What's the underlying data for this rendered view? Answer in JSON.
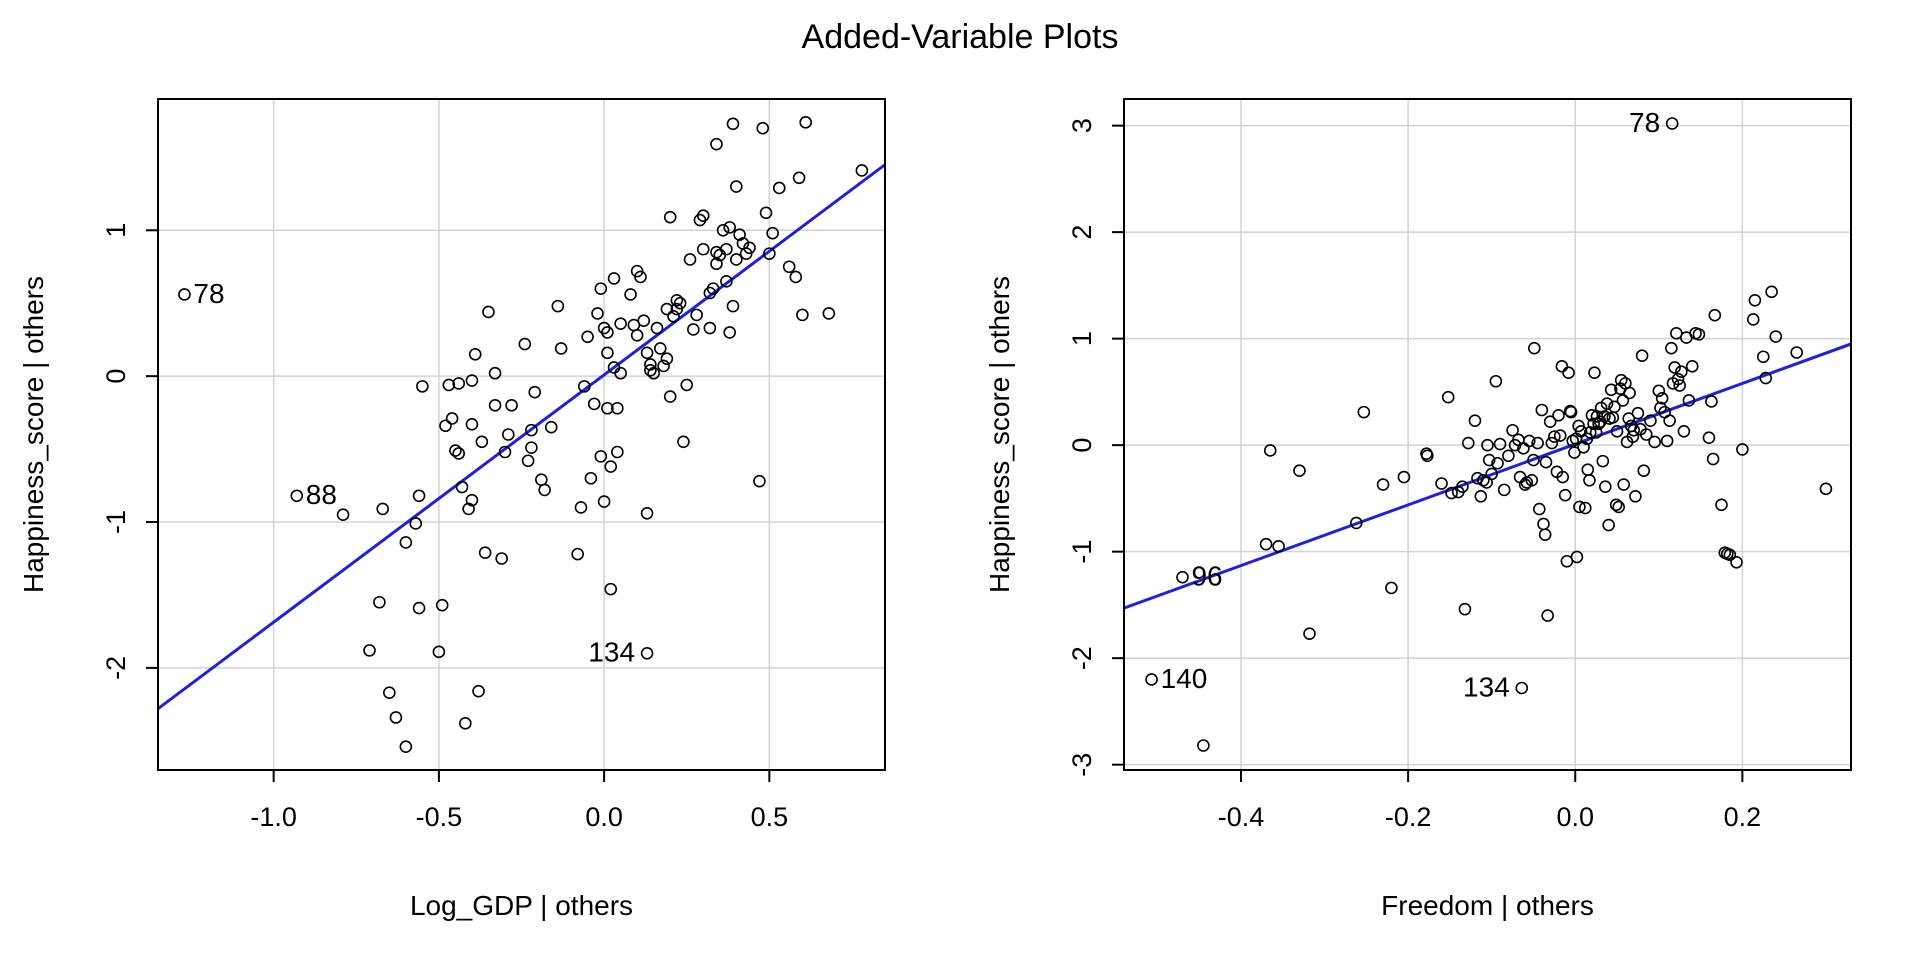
{
  "title": "Added-Variable Plots",
  "colors": {
    "fit_line": "#1f1fe0",
    "grid": "#d3d3d3",
    "points": "#000000"
  },
  "chart_data": [
    {
      "type": "scatter",
      "xlabel": "Log_GDP | others",
      "ylabel": "Happiness_score  | others",
      "xlim": [
        -1.35,
        0.85
      ],
      "ylim": [
        -2.7,
        1.9
      ],
      "xticks": [
        -1.0,
        -0.5,
        0.0,
        0.5
      ],
      "yticks": [
        -2,
        -1,
        0,
        1
      ],
      "xtick_labels": [
        "-1.0",
        "-0.5",
        "0.0",
        "0.5"
      ],
      "ytick_labels": [
        "-2",
        "-1",
        "0",
        "1"
      ],
      "grid": true,
      "fit_line": [
        [
          -1.35,
          -2.28
        ],
        [
          0.85,
          1.45
        ]
      ],
      "labeled_points": [
        {
          "label": "78",
          "x": -1.27,
          "y": 0.56
        },
        {
          "label": "88",
          "x": -0.93,
          "y": -0.82
        },
        {
          "label": "134",
          "x": 0.13,
          "y": -1.9
        }
      ],
      "points": [
        [
          -0.79,
          -0.95
        ],
        [
          -0.67,
          -0.91
        ],
        [
          -0.68,
          -1.55
        ],
        [
          -0.71,
          -1.88
        ],
        [
          -0.65,
          -2.17
        ],
        [
          -0.63,
          -2.34
        ],
        [
          -0.6,
          -2.54
        ],
        [
          -0.6,
          -1.14
        ],
        [
          -0.57,
          -1.01
        ],
        [
          -0.56,
          -1.59
        ],
        [
          -0.56,
          -0.82
        ],
        [
          -0.55,
          -0.07
        ],
        [
          -0.49,
          -1.57
        ],
        [
          -0.5,
          -1.89
        ],
        [
          -0.48,
          -0.34
        ],
        [
          -0.47,
          -0.06
        ],
        [
          -0.46,
          -0.29
        ],
        [
          -0.45,
          -0.51
        ],
        [
          -0.44,
          -0.53
        ],
        [
          -0.44,
          -0.05
        ],
        [
          -0.43,
          -0.76
        ],
        [
          -0.42,
          -2.38
        ],
        [
          -0.41,
          -0.91
        ],
        [
          -0.4,
          -0.33
        ],
        [
          -0.4,
          -0.85
        ],
        [
          -0.4,
          -0.03
        ],
        [
          -0.39,
          0.15
        ],
        [
          -0.38,
          -2.16
        ],
        [
          -0.37,
          -0.45
        ],
        [
          -0.36,
          -1.21
        ],
        [
          -0.35,
          0.44
        ],
        [
          -0.33,
          -0.2
        ],
        [
          -0.33,
          0.02
        ],
        [
          -0.31,
          -1.25
        ],
        [
          -0.3,
          -0.52
        ],
        [
          -0.29,
          -0.4
        ],
        [
          -0.28,
          -0.2
        ],
        [
          -0.24,
          0.22
        ],
        [
          -0.23,
          -0.58
        ],
        [
          -0.22,
          -0.49
        ],
        [
          -0.22,
          -0.37
        ],
        [
          -0.21,
          -0.11
        ],
        [
          -0.19,
          -0.71
        ],
        [
          -0.18,
          -0.78
        ],
        [
          -0.16,
          -0.35
        ],
        [
          -0.14,
          0.48
        ],
        [
          -0.13,
          0.19
        ],
        [
          -0.08,
          -1.22
        ],
        [
          -0.07,
          -0.9
        ],
        [
          -0.06,
          -0.07
        ],
        [
          -0.05,
          0.27
        ],
        [
          -0.04,
          -0.7
        ],
        [
          -0.03,
          -0.19
        ],
        [
          -0.02,
          0.43
        ],
        [
          -0.01,
          -0.55
        ],
        [
          -0.01,
          0.6
        ],
        [
          0.0,
          0.33
        ],
        [
          0.0,
          -0.86
        ],
        [
          0.01,
          0.3
        ],
        [
          0.01,
          0.16
        ],
        [
          0.01,
          -0.22
        ],
        [
          0.02,
          -0.62
        ],
        [
          0.02,
          -1.46
        ],
        [
          0.03,
          0.06
        ],
        [
          0.03,
          0.67
        ],
        [
          0.04,
          -0.22
        ],
        [
          0.04,
          -0.52
        ],
        [
          0.05,
          0.36
        ],
        [
          0.05,
          0.02
        ],
        [
          0.08,
          0.56
        ],
        [
          0.09,
          0.35
        ],
        [
          0.1,
          0.28
        ],
        [
          0.1,
          0.72
        ],
        [
          0.11,
          0.68
        ],
        [
          0.12,
          0.38
        ],
        [
          0.13,
          0.16
        ],
        [
          0.13,
          -0.94
        ],
        [
          0.14,
          0.04
        ],
        [
          0.14,
          0.08
        ],
        [
          0.15,
          0.02
        ],
        [
          0.16,
          0.33
        ],
        [
          0.17,
          0.19
        ],
        [
          0.18,
          0.07
        ],
        [
          0.19,
          0.12
        ],
        [
          0.19,
          0.46
        ],
        [
          0.2,
          -0.14
        ],
        [
          0.2,
          1.09
        ],
        [
          0.21,
          0.41
        ],
        [
          0.22,
          0.52
        ],
        [
          0.22,
          0.46
        ],
        [
          0.23,
          0.5
        ],
        [
          0.24,
          -0.45
        ],
        [
          0.25,
          -0.06
        ],
        [
          0.26,
          0.8
        ],
        [
          0.27,
          0.32
        ],
        [
          0.28,
          0.42
        ],
        [
          0.29,
          1.07
        ],
        [
          0.3,
          0.87
        ],
        [
          0.3,
          1.1
        ],
        [
          0.32,
          0.57
        ],
        [
          0.32,
          0.33
        ],
        [
          0.33,
          0.6
        ],
        [
          0.34,
          0.85
        ],
        [
          0.34,
          0.77
        ],
        [
          0.35,
          0.83
        ],
        [
          0.34,
          1.59
        ],
        [
          0.36,
          1.0
        ],
        [
          0.37,
          0.65
        ],
        [
          0.37,
          0.87
        ],
        [
          0.38,
          1.02
        ],
        [
          0.38,
          0.3
        ],
        [
          0.39,
          0.48
        ],
        [
          0.39,
          1.73
        ],
        [
          0.4,
          1.3
        ],
        [
          0.4,
          0.8
        ],
        [
          0.41,
          0.97
        ],
        [
          0.42,
          0.91
        ],
        [
          0.43,
          0.84
        ],
        [
          0.44,
          0.88
        ],
        [
          0.47,
          -0.72
        ],
        [
          0.48,
          1.7
        ],
        [
          0.49,
          1.12
        ],
        [
          0.5,
          0.84
        ],
        [
          0.51,
          0.98
        ],
        [
          0.53,
          1.29
        ],
        [
          0.56,
          0.75
        ],
        [
          0.58,
          0.68
        ],
        [
          0.59,
          1.36
        ],
        [
          0.6,
          0.42
        ],
        [
          0.61,
          1.74
        ],
        [
          0.68,
          0.43
        ],
        [
          0.78,
          1.41
        ]
      ]
    },
    {
      "type": "scatter",
      "xlabel": "Freedom | others",
      "ylabel": "Happiness_score  | others",
      "xlim": [
        -0.54,
        0.33
      ],
      "ylim": [
        -3.05,
        3.25
      ],
      "xticks": [
        -0.4,
        -0.2,
        0.0,
        0.2
      ],
      "yticks": [
        -3,
        -2,
        -1,
        0,
        1,
        2,
        3
      ],
      "xtick_labels": [
        "-0.4",
        "-0.2",
        "0.0",
        "0.2"
      ],
      "ytick_labels": [
        "-3",
        "-2",
        "-1",
        "0",
        "1",
        "2",
        "3"
      ],
      "grid": true,
      "fit_line": [
        [
          -0.54,
          -1.53
        ],
        [
          0.33,
          0.95
        ]
      ],
      "labeled_points": [
        {
          "label": "78",
          "x": 0.116,
          "y": 3.02
        },
        {
          "label": "96",
          "x": -0.47,
          "y": -1.24
        },
        {
          "label": "140",
          "x": -0.507,
          "y": -2.2
        },
        {
          "label": "134",
          "x": -0.064,
          "y": -2.28
        }
      ],
      "points": [
        [
          -0.445,
          -2.82
        ],
        [
          -0.37,
          -0.93
        ],
        [
          -0.365,
          -0.05
        ],
        [
          -0.355,
          -0.95
        ],
        [
          -0.33,
          -0.24
        ],
        [
          -0.318,
          -1.77
        ],
        [
          -0.262,
          -0.73
        ],
        [
          -0.253,
          0.31
        ],
        [
          -0.23,
          -0.37
        ],
        [
          -0.22,
          -1.34
        ],
        [
          -0.205,
          -0.3
        ],
        [
          -0.178,
          -0.08
        ],
        [
          -0.177,
          -0.1
        ],
        [
          -0.16,
          -0.36
        ],
        [
          -0.152,
          0.45
        ],
        [
          -0.148,
          -0.45
        ],
        [
          -0.14,
          -0.44
        ],
        [
          -0.135,
          -0.39
        ],
        [
          -0.132,
          -1.54
        ],
        [
          -0.128,
          0.02
        ],
        [
          -0.12,
          0.23
        ],
        [
          -0.117,
          -0.31
        ],
        [
          -0.113,
          -0.48
        ],
        [
          -0.11,
          -0.33
        ],
        [
          -0.106,
          -0.35
        ],
        [
          -0.105,
          0.0
        ],
        [
          -0.103,
          -0.14
        ],
        [
          -0.1,
          -0.27
        ],
        [
          -0.095,
          0.6
        ],
        [
          -0.093,
          -0.17
        ],
        [
          -0.09,
          0.01
        ],
        [
          -0.085,
          -0.42
        ],
        [
          -0.08,
          -0.1
        ],
        [
          -0.075,
          0.14
        ],
        [
          -0.072,
          0.0
        ],
        [
          -0.068,
          0.05
        ],
        [
          -0.066,
          -0.3
        ],
        [
          -0.062,
          -0.03
        ],
        [
          -0.06,
          -0.37
        ],
        [
          -0.058,
          -0.35
        ],
        [
          -0.055,
          0.04
        ],
        [
          -0.052,
          -0.33
        ],
        [
          -0.05,
          -0.14
        ],
        [
          -0.049,
          0.91
        ],
        [
          -0.045,
          0.02
        ],
        [
          -0.043,
          -0.6
        ],
        [
          -0.04,
          0.33
        ],
        [
          -0.038,
          -0.74
        ],
        [
          -0.036,
          -0.84
        ],
        [
          -0.035,
          -0.16
        ],
        [
          -0.033,
          -1.6
        ],
        [
          -0.03,
          0.22
        ],
        [
          -0.028,
          0.02
        ],
        [
          -0.025,
          0.08
        ],
        [
          -0.022,
          -0.25
        ],
        [
          -0.02,
          0.28
        ],
        [
          -0.018,
          0.09
        ],
        [
          -0.016,
          0.74
        ],
        [
          -0.015,
          -0.3
        ],
        [
          -0.012,
          -0.47
        ],
        [
          -0.01,
          -1.09
        ],
        [
          -0.008,
          0.68
        ],
        [
          -0.006,
          0.32
        ],
        [
          -0.005,
          0.31
        ],
        [
          -0.003,
          0.04
        ],
        [
          -0.001,
          -0.07
        ],
        [
          0.001,
          0.06
        ],
        [
          0.002,
          -1.05
        ],
        [
          0.004,
          0.18
        ],
        [
          0.005,
          -0.58
        ],
        [
          0.007,
          0.13
        ],
        [
          0.01,
          -0.02
        ],
        [
          0.012,
          -0.59
        ],
        [
          0.014,
          0.06
        ],
        [
          0.015,
          -0.23
        ],
        [
          0.017,
          -0.33
        ],
        [
          0.018,
          0.12
        ],
        [
          0.02,
          0.28
        ],
        [
          0.022,
          0.2
        ],
        [
          0.023,
          0.68
        ],
        [
          0.025,
          0.12
        ],
        [
          0.026,
          0.27
        ],
        [
          0.028,
          0.2
        ],
        [
          0.03,
          0.22
        ],
        [
          0.031,
          0.35
        ],
        [
          0.033,
          -0.15
        ],
        [
          0.035,
          0.27
        ],
        [
          0.036,
          -0.39
        ],
        [
          0.038,
          0.39
        ],
        [
          0.04,
          -0.75
        ],
        [
          0.041,
          0.25
        ],
        [
          0.043,
          0.52
        ],
        [
          0.045,
          0.26
        ],
        [
          0.047,
          0.36
        ],
        [
          0.049,
          -0.56
        ],
        [
          0.05,
          0.13
        ],
        [
          0.052,
          -0.58
        ],
        [
          0.054,
          0.53
        ],
        [
          0.055,
          0.61
        ],
        [
          0.057,
          0.42
        ],
        [
          0.058,
          -0.37
        ],
        [
          0.06,
          0.58
        ],
        [
          0.062,
          0.03
        ],
        [
          0.064,
          0.25
        ],
        [
          0.065,
          0.49
        ],
        [
          0.067,
          0.18
        ],
        [
          0.069,
          0.08
        ],
        [
          0.07,
          0.14
        ],
        [
          0.072,
          -0.48
        ],
        [
          0.075,
          0.3
        ],
        [
          0.078,
          0.15
        ],
        [
          0.08,
          0.84
        ],
        [
          0.082,
          -0.24
        ],
        [
          0.085,
          0.1
        ],
        [
          0.09,
          0.23
        ],
        [
          0.095,
          0.03
        ],
        [
          0.1,
          0.51
        ],
        [
          0.102,
          0.35
        ],
        [
          0.104,
          0.44
        ],
        [
          0.107,
          0.31
        ],
        [
          0.11,
          0.04
        ],
        [
          0.113,
          0.23
        ],
        [
          0.115,
          0.91
        ],
        [
          0.117,
          0.58
        ],
        [
          0.119,
          0.73
        ],
        [
          0.121,
          1.05
        ],
        [
          0.123,
          0.62
        ],
        [
          0.125,
          0.56
        ],
        [
          0.127,
          0.69
        ],
        [
          0.13,
          0.13
        ],
        [
          0.133,
          1.01
        ],
        [
          0.136,
          0.42
        ],
        [
          0.14,
          0.74
        ],
        [
          0.144,
          1.05
        ],
        [
          0.148,
          1.04
        ],
        [
          0.16,
          0.07
        ],
        [
          0.163,
          0.41
        ],
        [
          0.165,
          -0.13
        ],
        [
          0.167,
          1.22
        ],
        [
          0.175,
          -0.56
        ],
        [
          0.179,
          -1.01
        ],
        [
          0.182,
          -1.02
        ],
        [
          0.185,
          -1.03
        ],
        [
          0.193,
          -1.1
        ],
        [
          0.2,
          -0.04
        ],
        [
          0.213,
          1.18
        ],
        [
          0.215,
          1.36
        ],
        [
          0.225,
          0.83
        ],
        [
          0.228,
          0.63
        ],
        [
          0.235,
          1.44
        ],
        [
          0.24,
          1.02
        ],
        [
          0.265,
          0.87
        ],
        [
          0.3,
          -0.41
        ]
      ]
    }
  ]
}
